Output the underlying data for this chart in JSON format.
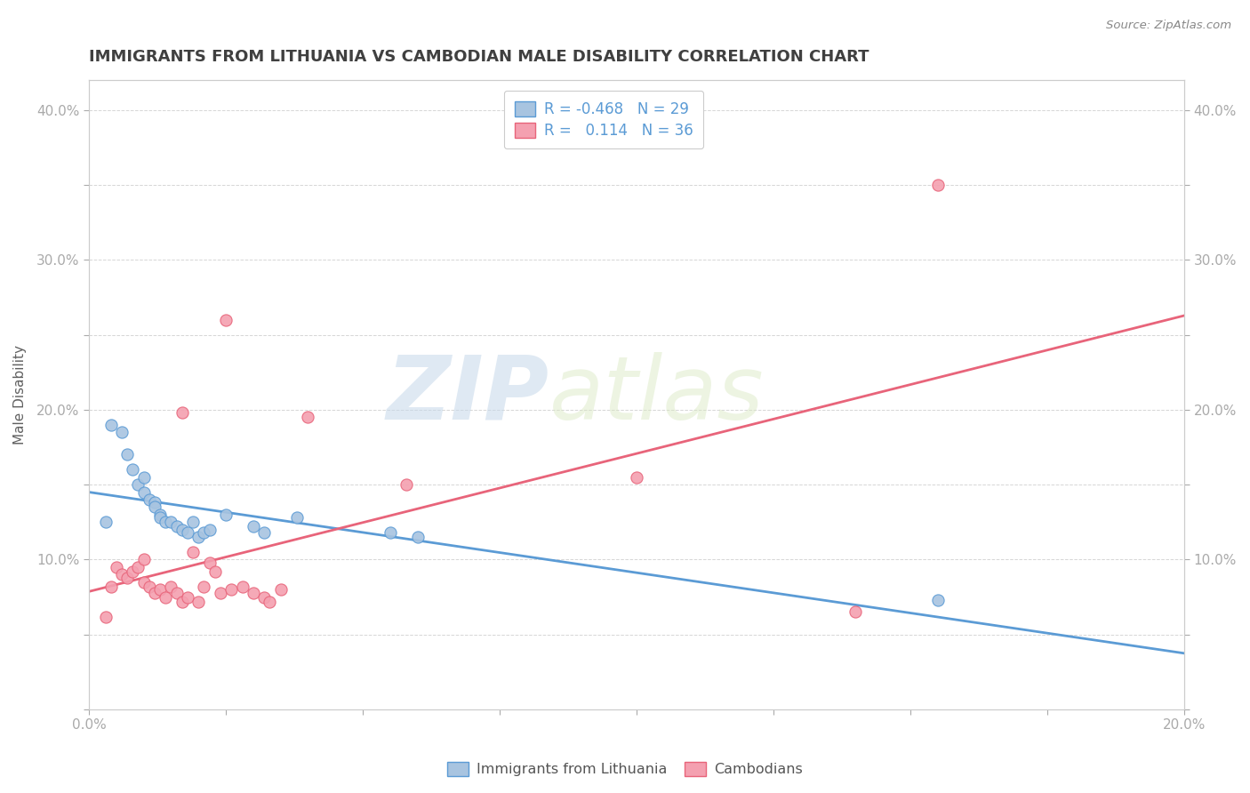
{
  "title": "IMMIGRANTS FROM LITHUANIA VS CAMBODIAN MALE DISABILITY CORRELATION CHART",
  "source": "Source: ZipAtlas.com",
  "ylabel": "Male Disability",
  "legend_labels": [
    "Immigrants from Lithuania",
    "Cambodians"
  ],
  "r_values": [
    -0.468,
    0.114
  ],
  "n_values": [
    29,
    36
  ],
  "blue_color": "#a8c4e0",
  "pink_color": "#f4a0b0",
  "blue_line_color": "#5b9bd5",
  "pink_line_color": "#e8647a",
  "title_color": "#404040",
  "axis_label_color": "#5b9bd5",
  "watermark_zip": "ZIP",
  "watermark_atlas": "atlas",
  "xlim": [
    0.0,
    0.2
  ],
  "ylim": [
    0.0,
    0.42
  ],
  "blue_scatter_x": [
    0.004,
    0.006,
    0.007,
    0.008,
    0.009,
    0.01,
    0.01,
    0.011,
    0.012,
    0.012,
    0.013,
    0.013,
    0.014,
    0.015,
    0.016,
    0.017,
    0.018,
    0.019,
    0.02,
    0.021,
    0.022,
    0.025,
    0.03,
    0.032,
    0.038,
    0.055,
    0.06,
    0.155,
    0.003
  ],
  "blue_scatter_y": [
    0.19,
    0.185,
    0.17,
    0.16,
    0.15,
    0.155,
    0.145,
    0.14,
    0.138,
    0.135,
    0.13,
    0.128,
    0.125,
    0.125,
    0.122,
    0.12,
    0.118,
    0.125,
    0.115,
    0.118,
    0.12,
    0.13,
    0.122,
    0.118,
    0.128,
    0.118,
    0.115,
    0.073,
    0.125
  ],
  "pink_scatter_x": [
    0.003,
    0.004,
    0.005,
    0.006,
    0.007,
    0.008,
    0.009,
    0.01,
    0.01,
    0.011,
    0.012,
    0.013,
    0.014,
    0.015,
    0.016,
    0.017,
    0.018,
    0.019,
    0.02,
    0.021,
    0.022,
    0.023,
    0.024,
    0.026,
    0.028,
    0.03,
    0.032,
    0.033,
    0.035,
    0.04,
    0.058,
    0.1,
    0.14,
    0.155,
    0.017,
    0.025
  ],
  "pink_scatter_y": [
    0.062,
    0.082,
    0.095,
    0.09,
    0.088,
    0.092,
    0.095,
    0.1,
    0.085,
    0.082,
    0.078,
    0.08,
    0.075,
    0.082,
    0.078,
    0.072,
    0.075,
    0.105,
    0.072,
    0.082,
    0.098,
    0.092,
    0.078,
    0.08,
    0.082,
    0.078,
    0.075,
    0.072,
    0.08,
    0.195,
    0.15,
    0.155,
    0.065,
    0.35,
    0.198,
    0.26
  ],
  "xtick_positions": [
    0.0,
    0.025,
    0.05,
    0.075,
    0.1,
    0.125,
    0.15,
    0.175,
    0.2
  ],
  "xtick_labels": [
    "0.0%",
    "",
    "",
    "",
    "",
    "",
    "",
    "",
    "20.0%"
  ],
  "ytick_positions": [
    0.0,
    0.05,
    0.1,
    0.15,
    0.2,
    0.25,
    0.3,
    0.35,
    0.4
  ],
  "ytick_labels_left": [
    "",
    "",
    "10.0%",
    "",
    "20.0%",
    "",
    "30.0%",
    "",
    "40.0%"
  ],
  "ytick_labels_right": [
    "",
    "",
    "10.0%",
    "",
    "20.0%",
    "",
    "30.0%",
    "",
    "40.0%"
  ]
}
